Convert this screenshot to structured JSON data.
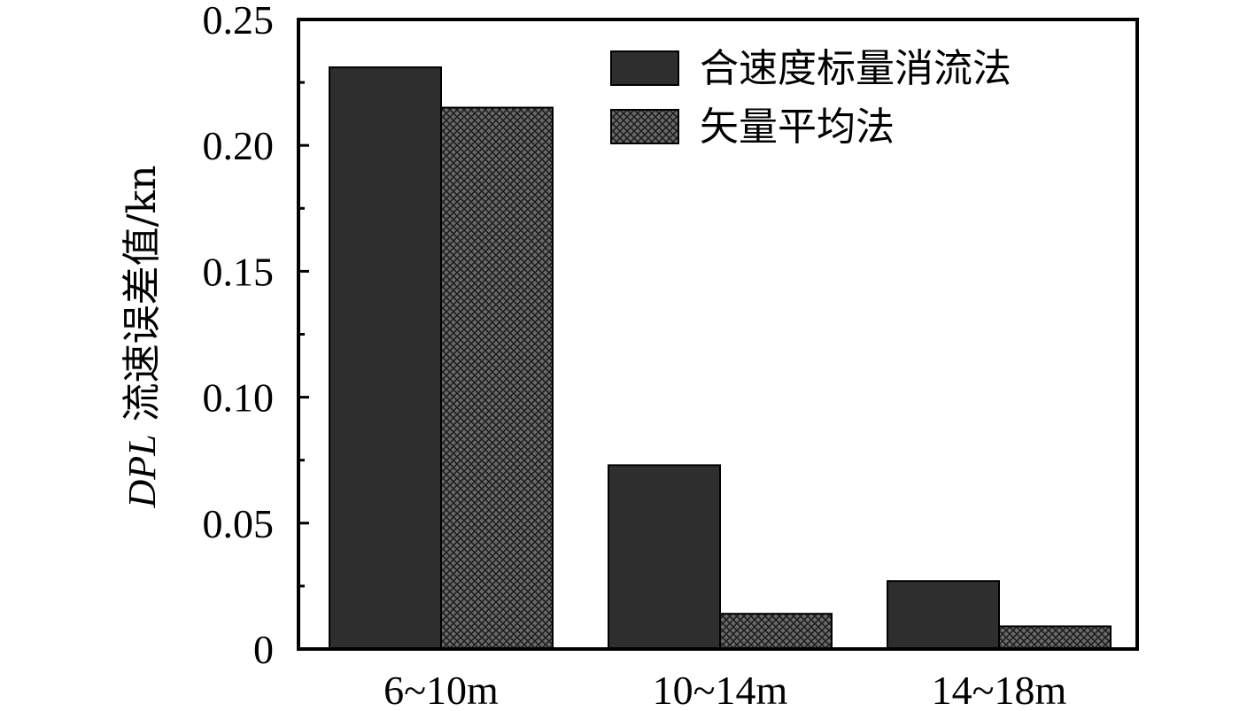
{
  "chart_data": {
    "type": "bar",
    "categories": [
      "6~10m",
      "10~14m",
      "14~18m"
    ],
    "series": [
      {
        "name": "合速度标量消流法",
        "values": [
          0.231,
          0.073,
          0.027
        ],
        "color": "#2e2e2e",
        "pattern": "solid"
      },
      {
        "name": "矢量平均法",
        "values": [
          0.215,
          0.014,
          0.009
        ],
        "color": "#5a5a5a",
        "pattern": "crosshatch"
      }
    ],
    "ylabel_prefix": "DPL",
    "ylabel_rest": " 流速误差值/kn",
    "xlabel": "",
    "ylim": [
      0,
      0.25
    ],
    "yticks": [
      "0",
      "0.05",
      "0.10",
      "0.15",
      "0.20",
      "0.25"
    ],
    "ytick_values": [
      0,
      0.05,
      0.1,
      0.15,
      0.2,
      0.25
    ],
    "minor_ticks": true,
    "grid": false,
    "legend_position": "top-right"
  }
}
